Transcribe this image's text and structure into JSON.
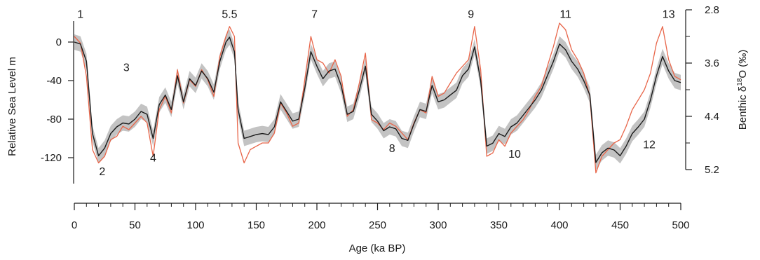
{
  "chart_data": {
    "type": "line",
    "xlabel": "Age (ka BP)",
    "ylabel_left": "Relative Sea Level m",
    "ylabel_right_parts": [
      "Benthic δ",
      "18",
      "O (‰)"
    ],
    "xlim": [
      0,
      500
    ],
    "ylim_left": [
      -140,
      20
    ],
    "ylim_right": [
      5.2,
      2.8
    ],
    "x_ticks": [
      0,
      50,
      100,
      150,
      200,
      250,
      300,
      350,
      400,
      450,
      500
    ],
    "x_tick_labels": [
      "0",
      "50",
      "100",
      "150",
      "200",
      "250",
      "300",
      "350",
      "400",
      "450",
      "500"
    ],
    "x_minor_step": 10,
    "y_left_ticks": [
      0,
      -40,
      -80,
      -120
    ],
    "y_left_tick_labels": [
      "0",
      "-40",
      "-80",
      "-120"
    ],
    "y_right_ticks": [
      2.8,
      3.6,
      4.4,
      5.2
    ],
    "y_right_tick_labels": [
      "2.8",
      "3.6",
      "4.4",
      "5.2"
    ],
    "stage_labels": [
      {
        "text": "1",
        "x": 5,
        "y": 25
      },
      {
        "text": "2",
        "x": 23,
        "y": -138
      },
      {
        "text": "3",
        "x": 43,
        "y": -30
      },
      {
        "text": "4",
        "x": 65,
        "y": -124
      },
      {
        "text": "5.5",
        "x": 128,
        "y": 25
      },
      {
        "text": "7",
        "x": 198,
        "y": 25
      },
      {
        "text": "8",
        "x": 262,
        "y": -114
      },
      {
        "text": "9",
        "x": 327,
        "y": 25
      },
      {
        "text": "10",
        "x": 363,
        "y": -120
      },
      {
        "text": "11",
        "x": 405,
        "y": 25
      },
      {
        "text": "12",
        "x": 474,
        "y": -110
      },
      {
        "text": "13",
        "x": 490,
        "y": 25
      }
    ],
    "series": [
      {
        "role": "sea-level-mean",
        "color": "#1a1a1a",
        "axis": "left",
        "x": [
          0,
          5,
          10,
          15,
          20,
          25,
          30,
          35,
          40,
          45,
          50,
          55,
          60,
          65,
          70,
          75,
          80,
          85,
          90,
          95,
          100,
          105,
          110,
          115,
          120,
          125,
          128,
          132,
          135,
          140,
          145,
          150,
          155,
          160,
          165,
          170,
          175,
          180,
          185,
          190,
          195,
          200,
          205,
          210,
          215,
          220,
          225,
          230,
          235,
          240,
          245,
          250,
          255,
          260,
          265,
          270,
          275,
          280,
          285,
          290,
          295,
          300,
          305,
          310,
          315,
          320,
          325,
          330,
          335,
          340,
          345,
          350,
          355,
          360,
          365,
          370,
          375,
          380,
          385,
          390,
          395,
          400,
          405,
          410,
          415,
          420,
          425,
          430,
          435,
          440,
          445,
          450,
          455,
          460,
          465,
          470,
          475,
          480,
          485,
          490,
          495,
          500
        ],
        "y": [
          0,
          -2,
          -20,
          -95,
          -118,
          -110,
          -95,
          -88,
          -84,
          -85,
          -80,
          -72,
          -75,
          -100,
          -65,
          -55,
          -70,
          -35,
          -62,
          -38,
          -45,
          -30,
          -38,
          -52,
          -20,
          0,
          5,
          -10,
          -70,
          -100,
          -98,
          -96,
          -95,
          -96,
          -88,
          -62,
          -72,
          -82,
          -80,
          -48,
          -10,
          -25,
          -38,
          -30,
          -28,
          -45,
          -75,
          -72,
          -50,
          -25,
          -75,
          -82,
          -92,
          -88,
          -90,
          -100,
          -102,
          -85,
          -70,
          -72,
          -45,
          -62,
          -60,
          -55,
          -50,
          -35,
          -28,
          -5,
          -40,
          -108,
          -105,
          -95,
          -98,
          -88,
          -84,
          -76,
          -68,
          -60,
          -50,
          -35,
          -20,
          -2,
          -8,
          -20,
          -28,
          -40,
          -55,
          -125,
          -115,
          -110,
          -112,
          -118,
          -108,
          -95,
          -88,
          -80,
          -60,
          -35,
          -15,
          -30,
          -40,
          -42
        ]
      },
      {
        "role": "benthic-d18O",
        "color": "#e8664a",
        "axis": "right",
        "x": [
          0,
          5,
          10,
          15,
          20,
          25,
          30,
          35,
          40,
          45,
          50,
          55,
          60,
          65,
          70,
          75,
          80,
          85,
          90,
          95,
          100,
          105,
          110,
          115,
          120,
          125,
          128,
          132,
          135,
          140,
          145,
          150,
          155,
          160,
          165,
          170,
          175,
          180,
          185,
          190,
          195,
          200,
          205,
          210,
          215,
          220,
          225,
          230,
          235,
          240,
          245,
          250,
          255,
          260,
          265,
          270,
          275,
          280,
          285,
          290,
          295,
          300,
          305,
          310,
          315,
          320,
          325,
          330,
          335,
          340,
          345,
          350,
          355,
          360,
          365,
          370,
          375,
          380,
          385,
          390,
          395,
          400,
          405,
          410,
          415,
          420,
          425,
          430,
          435,
          440,
          445,
          450,
          455,
          460,
          465,
          470,
          475,
          480,
          485,
          490,
          495,
          500
        ],
        "y": [
          3.2,
          3.3,
          3.8,
          4.9,
          5.1,
          5.0,
          4.75,
          4.7,
          4.55,
          4.6,
          4.5,
          4.4,
          4.5,
          5.0,
          4.3,
          4.1,
          4.35,
          3.7,
          4.2,
          3.85,
          3.95,
          3.7,
          3.85,
          4.1,
          3.5,
          3.2,
          3.05,
          3.2,
          4.8,
          5.1,
          4.9,
          4.85,
          4.8,
          4.8,
          4.65,
          4.2,
          4.35,
          4.55,
          4.5,
          3.85,
          3.2,
          3.55,
          3.6,
          3.75,
          3.55,
          3.8,
          4.4,
          4.3,
          3.9,
          3.45,
          4.45,
          4.5,
          4.6,
          4.5,
          4.55,
          4.65,
          4.75,
          4.5,
          4.3,
          4.35,
          3.8,
          4.1,
          4.05,
          3.9,
          3.75,
          3.65,
          3.55,
          3.05,
          3.7,
          5.0,
          4.95,
          4.75,
          4.85,
          4.65,
          4.55,
          4.45,
          4.3,
          4.1,
          3.95,
          3.65,
          3.35,
          3.0,
          3.1,
          3.4,
          3.55,
          3.75,
          4.1,
          5.25,
          5.0,
          4.9,
          4.8,
          4.75,
          4.55,
          4.3,
          4.15,
          4.0,
          3.75,
          3.3,
          3.05,
          3.55,
          3.8,
          3.85
        ]
      }
    ],
    "uncertainty_band_halfwidth_m": 8,
    "band_color": "#b9b9b9"
  }
}
